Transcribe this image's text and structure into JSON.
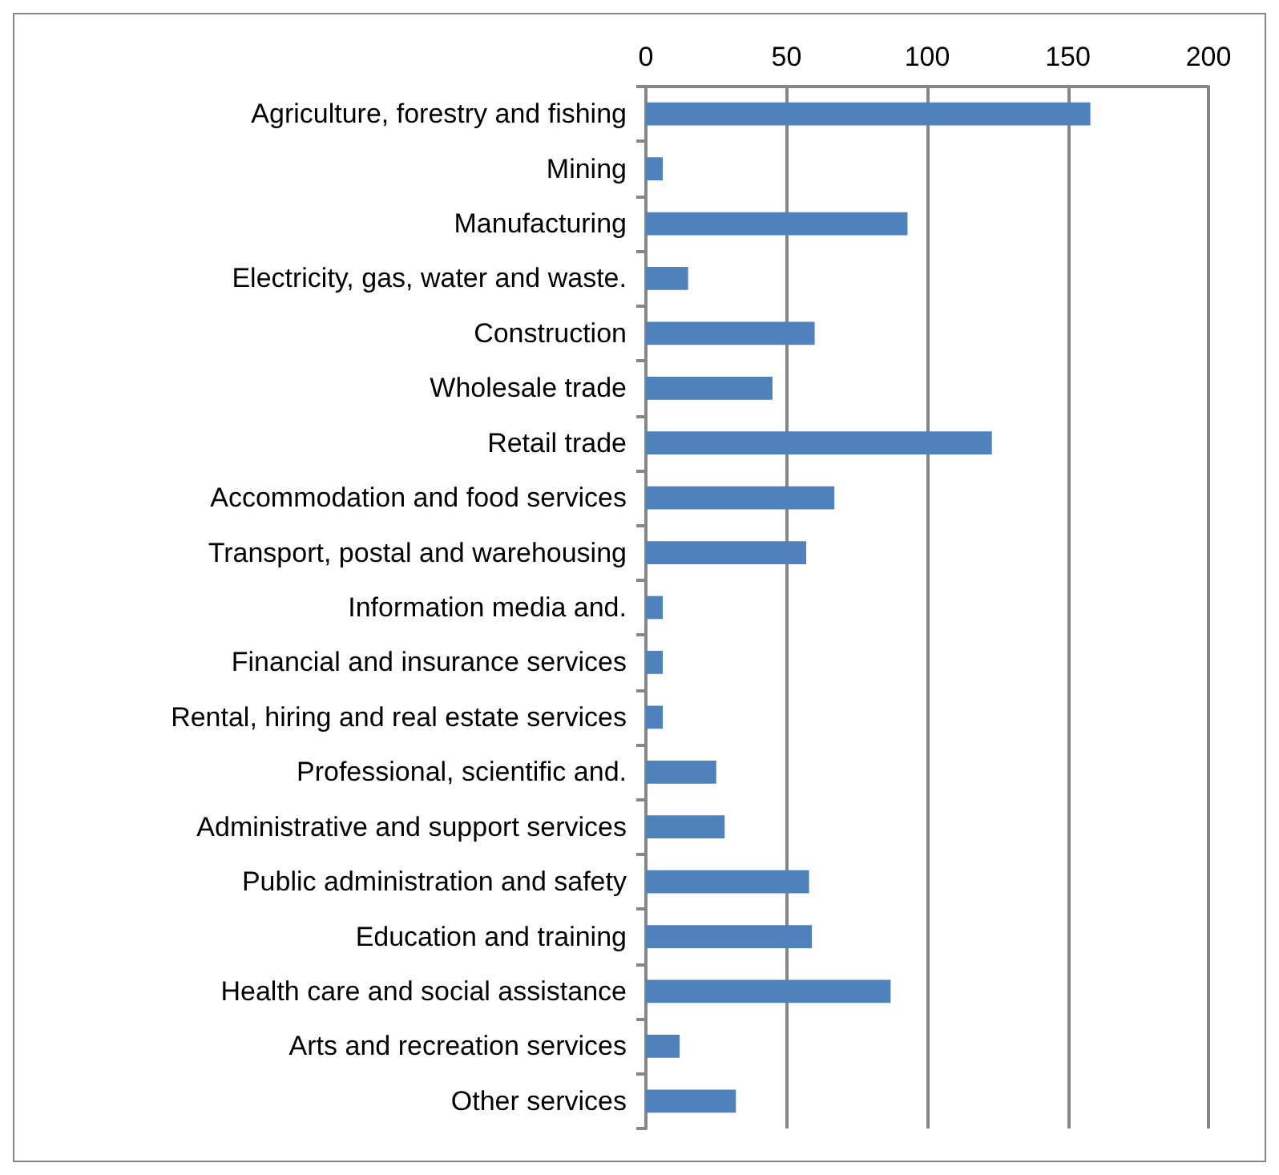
{
  "chart_data": {
    "type": "bar",
    "orientation": "horizontal",
    "categories": [
      "Agriculture, forestry and fishing",
      "Mining",
      "Manufacturing",
      "Electricity, gas, water and waste.",
      "Construction",
      "Wholesale trade",
      "Retail trade",
      "Accommodation and food services",
      "Transport, postal and warehousing",
      "Information media and.",
      "Financial and insurance services",
      "Rental, hiring and real estate services",
      "Professional, scientific and.",
      "Administrative and support services",
      "Public administration and safety",
      "Education and training",
      "Health care and social assistance",
      "Arts and recreation services",
      "Other services"
    ],
    "series": [
      {
        "color": "#4f81bd",
        "values": [
          158,
          6,
          93,
          15,
          60,
          45,
          123,
          67,
          57,
          6,
          6,
          6,
          25,
          28,
          58,
          59,
          87,
          12,
          32
        ]
      }
    ],
    "xlim": [
      0,
      200
    ],
    "xticks": [
      0,
      50,
      100,
      150,
      200
    ],
    "grid": "x"
  }
}
